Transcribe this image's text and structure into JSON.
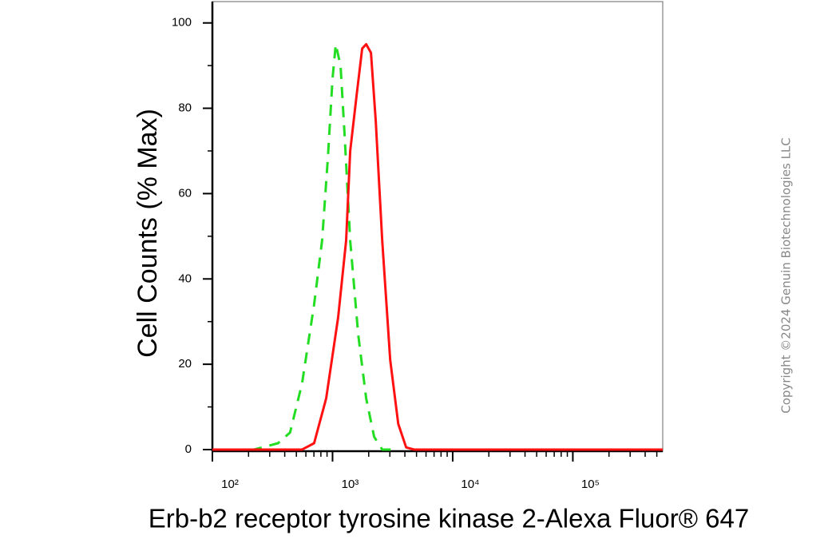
{
  "chart_data": {
    "type": "line",
    "x_label": "Erb-b2 receptor tyrosine kinase 2-Alexa Fluor® 647",
    "y_label": "Cell Counts (% Max)",
    "watermark": "Copyright ©2024 Genuin Biotechnologies LLC",
    "xscale": "log",
    "xlim": [
      100,
      560000
    ],
    "ylim": [
      0,
      105
    ],
    "xticks": [
      {
        "value": 100,
        "label": "10²"
      },
      {
        "value": 1000,
        "label": "10³"
      },
      {
        "value": 10000,
        "label": "10⁴"
      },
      {
        "value": 100000,
        "label": "10⁵"
      }
    ],
    "yticks": [
      0,
      20,
      40,
      60,
      80,
      100
    ],
    "series": [
      {
        "color": "#22dd22",
        "dashed": true,
        "x": [
          100,
          222,
          352,
          443,
          558,
          703,
          819,
          912,
          1000,
          1064,
          1166,
          1259,
          1402,
          1634,
          1905,
          2222,
          2590,
          3524
        ],
        "values": [
          0,
          0,
          1.5,
          4,
          15.5,
          34,
          49,
          68,
          87,
          95,
          90,
          74,
          49,
          27,
          12,
          3,
          0,
          0
        ]
      },
      {
        "color": "#ff1111",
        "dashed": false,
        "x": [
          100,
          558,
          703,
          885,
          1114,
          1298,
          1402,
          1585,
          1765,
          1905,
          2089,
          2291,
          2590,
          3020,
          3524,
          4102,
          4786,
          560000
        ],
        "values": [
          0,
          0,
          1.5,
          12,
          31,
          49,
          70,
          83,
          94,
          95,
          93,
          77,
          49,
          21,
          6,
          0.5,
          0,
          0
        ]
      }
    ]
  }
}
